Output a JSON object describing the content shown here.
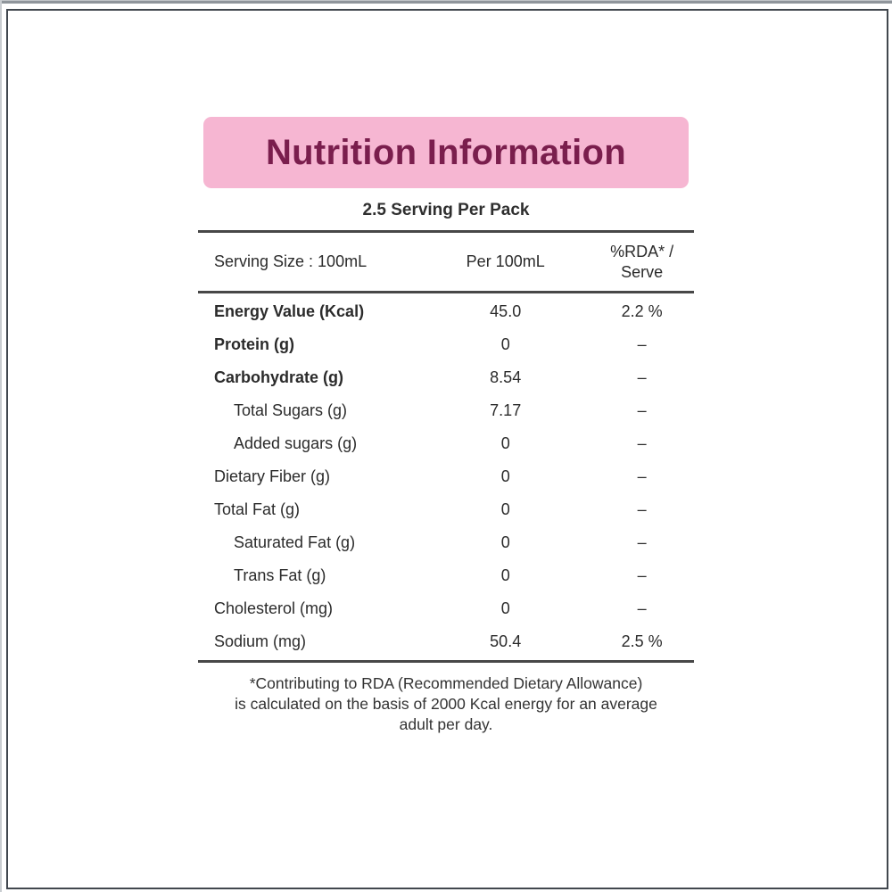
{
  "colors": {
    "banner_bg": "#f6b6d2",
    "title_color": "#7a1e4d",
    "rule_color": "#474747",
    "frame_border": "#41474e",
    "text_color": "#2b2b2b"
  },
  "label": {
    "title": "Nutrition Information",
    "servings_per_pack": "2.5 Serving Per Pack",
    "table": {
      "header": {
        "serving_size": "Serving Size : 100mL",
        "per_100ml": "Per 100mL",
        "rda_per_serve": "%RDA* /\nServe"
      },
      "rows": [
        {
          "label": "Energy Value (Kcal)",
          "value": "45.0",
          "rda": "2.2 %",
          "indent": false,
          "bold": true
        },
        {
          "label": "Protein (g)",
          "value": "0",
          "rda": "–",
          "indent": false,
          "bold": true
        },
        {
          "label": "Carbohydrate (g)",
          "value": "8.54",
          "rda": "–",
          "indent": false,
          "bold": true
        },
        {
          "label": "Total Sugars (g)",
          "value": "7.17",
          "rda": "–",
          "indent": true,
          "bold": false
        },
        {
          "label": "Added sugars (g)",
          "value": "0",
          "rda": "–",
          "indent": true,
          "bold": false
        },
        {
          "label": "Dietary Fiber (g)",
          "value": "0",
          "rda": "–",
          "indent": false,
          "bold": false
        },
        {
          "label": "Total Fat (g)",
          "value": "0",
          "rda": "–",
          "indent": false,
          "bold": false
        },
        {
          "label": "Saturated Fat (g)",
          "value": "0",
          "rda": "–",
          "indent": true,
          "bold": false
        },
        {
          "label": "Trans Fat (g)",
          "value": "0",
          "rda": "–",
          "indent": true,
          "bold": false
        },
        {
          "label": "Cholesterol (mg)",
          "value": "0",
          "rda": "–",
          "indent": false,
          "bold": false
        },
        {
          "label": "Sodium (mg)",
          "value": "50.4",
          "rda": "2.5 %",
          "indent": false,
          "bold": false
        }
      ]
    },
    "footnote": "*Contributing to RDA (Recommended Dietary Allowance)\nis calculated on the basis of 2000 Kcal energy for an average\nadult per day."
  }
}
